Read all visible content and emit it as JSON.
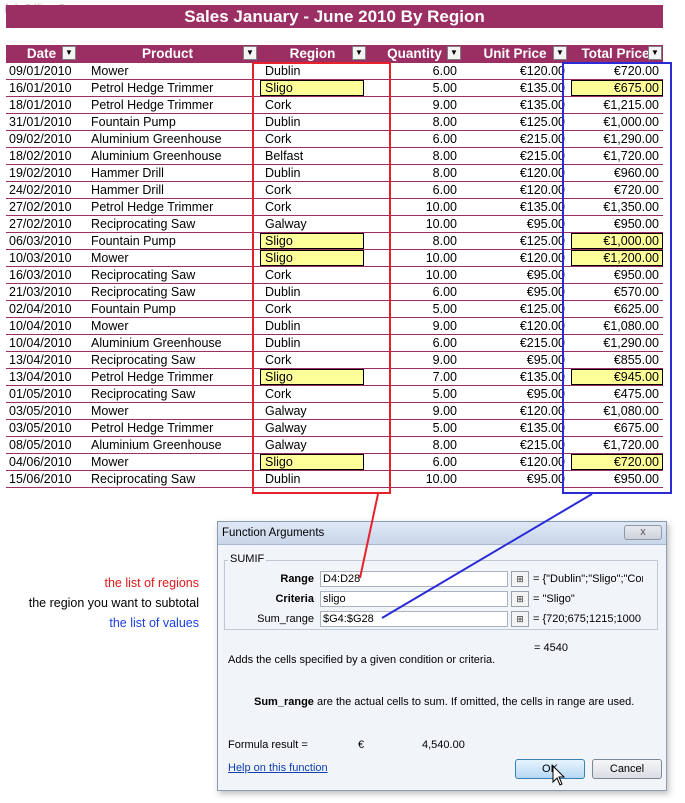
{
  "watermark": "(c) OfficeCorner",
  "title": "Sales January - June 2010 By Region",
  "columns": [
    "Date",
    "Product",
    "Region",
    "Quantity",
    "Unit Price",
    "Total Price"
  ],
  "rows": [
    {
      "date": "09/01/2010",
      "product": "Mower",
      "region": "Dublin",
      "qty": "6.00",
      "unit": "€120.00",
      "total": "€720.00",
      "hl": false
    },
    {
      "date": "16/01/2010",
      "product": "Petrol Hedge Trimmer",
      "region": "Sligo",
      "qty": "5.00",
      "unit": "€135.00",
      "total": "€675.00",
      "hl": true
    },
    {
      "date": "18/01/2010",
      "product": "Petrol Hedge Trimmer",
      "region": "Cork",
      "qty": "9.00",
      "unit": "€135.00",
      "total": "€1,215.00",
      "hl": false
    },
    {
      "date": "31/01/2010",
      "product": "Fountain Pump",
      "region": "Dublin",
      "qty": "8.00",
      "unit": "€125.00",
      "total": "€1,000.00",
      "hl": false
    },
    {
      "date": "09/02/2010",
      "product": "Aluminium Greenhouse",
      "region": "Cork",
      "qty": "6.00",
      "unit": "€215.00",
      "total": "€1,290.00",
      "hl": false
    },
    {
      "date": "18/02/2010",
      "product": "Aluminium Greenhouse",
      "region": "Belfast",
      "qty": "8.00",
      "unit": "€215.00",
      "total": "€1,720.00",
      "hl": false
    },
    {
      "date": "19/02/2010",
      "product": "Hammer Drill",
      "region": "Dublin",
      "qty": "8.00",
      "unit": "€120.00",
      "total": "€960.00",
      "hl": false
    },
    {
      "date": "24/02/2010",
      "product": "Hammer Drill",
      "region": "Cork",
      "qty": "6.00",
      "unit": "€120.00",
      "total": "€720.00",
      "hl": false
    },
    {
      "date": "27/02/2010",
      "product": "Petrol Hedge Trimmer",
      "region": "Cork",
      "qty": "10.00",
      "unit": "€135.00",
      "total": "€1,350.00",
      "hl": false
    },
    {
      "date": "27/02/2010",
      "product": "Reciprocating Saw",
      "region": "Galway",
      "qty": "10.00",
      "unit": "€95.00",
      "total": "€950.00",
      "hl": false
    },
    {
      "date": "06/03/2010",
      "product": "Fountain Pump",
      "region": "Sligo",
      "qty": "8.00",
      "unit": "€125.00",
      "total": "€1,000.00",
      "hl": true
    },
    {
      "date": "10/03/2010",
      "product": "Mower",
      "region": "Sligo",
      "qty": "10.00",
      "unit": "€120.00",
      "total": "€1,200.00",
      "hl": true
    },
    {
      "date": "16/03/2010",
      "product": "Reciprocating Saw",
      "region": "Cork",
      "qty": "10.00",
      "unit": "€95.00",
      "total": "€950.00",
      "hl": false
    },
    {
      "date": "21/03/2010",
      "product": "Reciprocating Saw",
      "region": "Dublin",
      "qty": "6.00",
      "unit": "€95.00",
      "total": "€570.00",
      "hl": false
    },
    {
      "date": "02/04/2010",
      "product": "Fountain Pump",
      "region": "Cork",
      "qty": "5.00",
      "unit": "€125.00",
      "total": "€625.00",
      "hl": false
    },
    {
      "date": "10/04/2010",
      "product": "Mower",
      "region": "Dublin",
      "qty": "9.00",
      "unit": "€120.00",
      "total": "€1,080.00",
      "hl": false
    },
    {
      "date": "10/04/2010",
      "product": "Aluminium Greenhouse",
      "region": "Dublin",
      "qty": "6.00",
      "unit": "€215.00",
      "total": "€1,290.00",
      "hl": false
    },
    {
      "date": "13/04/2010",
      "product": "Reciprocating Saw",
      "region": "Cork",
      "qty": "9.00",
      "unit": "€95.00",
      "total": "€855.00",
      "hl": false
    },
    {
      "date": "13/04/2010",
      "product": "Petrol Hedge Trimmer",
      "region": "Sligo",
      "qty": "7.00",
      "unit": "€135.00",
      "total": "€945.00",
      "hl": true
    },
    {
      "date": "01/05/2010",
      "product": "Reciprocating Saw",
      "region": "Cork",
      "qty": "5.00",
      "unit": "€95.00",
      "total": "€475.00",
      "hl": false
    },
    {
      "date": "03/05/2010",
      "product": "Mower",
      "region": "Galway",
      "qty": "9.00",
      "unit": "€120.00",
      "total": "€1,080.00",
      "hl": false
    },
    {
      "date": "03/05/2010",
      "product": "Petrol Hedge Trimmer",
      "region": "Galway",
      "qty": "5.00",
      "unit": "€135.00",
      "total": "€675.00",
      "hl": false
    },
    {
      "date": "08/05/2010",
      "product": "Aluminium Greenhouse",
      "region": "Galway",
      "qty": "8.00",
      "unit": "€215.00",
      "total": "€1,720.00",
      "hl": false
    },
    {
      "date": "04/06/2010",
      "product": "Mower",
      "region": "Sligo",
      "qty": "6.00",
      "unit": "€120.00",
      "total": "€720.00",
      "hl": true
    },
    {
      "date": "15/06/2010",
      "product": "Reciprocating Saw",
      "region": "Dublin",
      "qty": "10.00",
      "unit": "€95.00",
      "total": "€950.00",
      "hl": false
    }
  ],
  "annotations": {
    "regions": "the list of regions",
    "criteria": "the region you want to subtotal",
    "values": "the list of values"
  },
  "colors": {
    "header_bg": "#9b2f63",
    "highlight": "#ffff99",
    "red_box": "#e8222b",
    "blue_box": "#2a2ad8"
  },
  "dialog": {
    "title": "Function Arguments",
    "close": "x",
    "function_name": "SUMIF",
    "args": [
      {
        "label": "Range",
        "value": "D4:D28",
        "result": "= {\"Dublin\";\"Sligo\";\"Cor"
      },
      {
        "label": "Criteria",
        "value": "sligo",
        "result": "= \"Sligo\""
      },
      {
        "label": "Sum_range",
        "value": "$G4:$G28",
        "result": "= {720;675;1215;1000"
      }
    ],
    "function_result": "= 4540",
    "description": "Adds the cells specified by a given condition or criteria.",
    "arg_desc_name": "Sum_range",
    "arg_desc_text": "are the actual cells to sum. If omitted, the cells in range are used.",
    "formula_result_label": "Formula result =",
    "currency": "€",
    "formula_result_value": "4,540.00",
    "help_link": "Help on this function",
    "ok_label": "OK",
    "cancel_label": "Cancel"
  }
}
